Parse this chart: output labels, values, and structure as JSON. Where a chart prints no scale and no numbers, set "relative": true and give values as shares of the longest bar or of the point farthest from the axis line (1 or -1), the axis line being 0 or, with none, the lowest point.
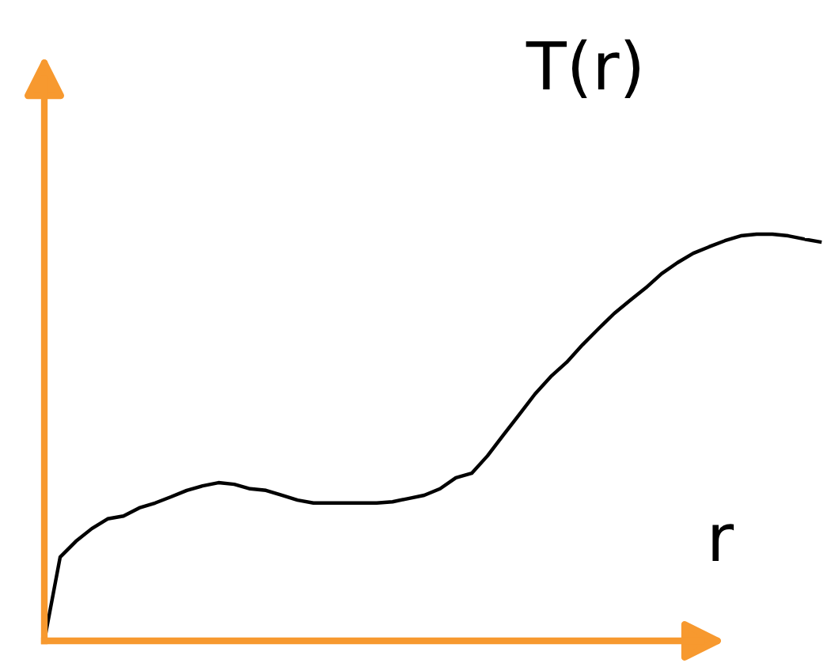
{
  "chart_data": {
    "type": "line",
    "title": "T(r)",
    "xlabel": "r",
    "relative": true,
    "categories": [
      null,
      null,
      null,
      null,
      null,
      null,
      null,
      null,
      null,
      null,
      null,
      null,
      null,
      null,
      null,
      null,
      null,
      null,
      null,
      null,
      null,
      null,
      null,
      null,
      null,
      null,
      null,
      null,
      null,
      null,
      null,
      null,
      null,
      null,
      null,
      null,
      null,
      null,
      null,
      null,
      null,
      null,
      null,
      null,
      null,
      null,
      null,
      null,
      null,
      null
    ],
    "series": [
      {
        "color": "#000000",
        "values": [
          0,
          0.206,
          0.245,
          0.276,
          0.3,
          0.307,
          0.327,
          0.339,
          0.354,
          0.37,
          0.381,
          0.389,
          0.385,
          0.374,
          0.37,
          0.358,
          0.346,
          0.339,
          0.339,
          0.339,
          0.339,
          0.339,
          0.342,
          0.35,
          0.358,
          0.374,
          0.401,
          0.412,
          0.455,
          0.506,
          0.556,
          0.607,
          0.65,
          0.685,
          0.728,
          0.767,
          0.805,
          0.837,
          0.868,
          0.903,
          0.93,
          0.953,
          0.969,
          0.984,
          0.996,
          1,
          1,
          0.996,
          0.988,
          0.981
        ]
      }
    ],
    "grid": false,
    "legend": false
  }
}
